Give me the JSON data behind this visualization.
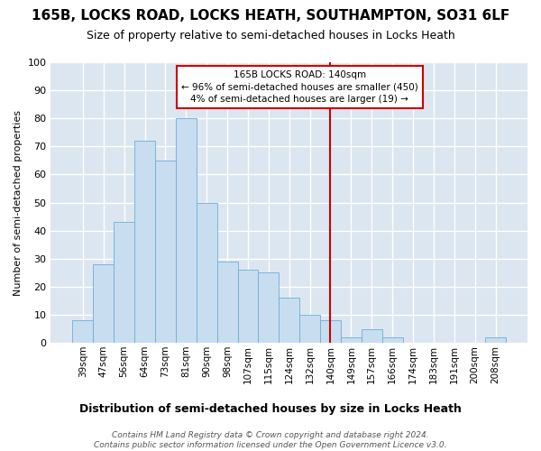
{
  "title1": "165B, LOCKS ROAD, LOCKS HEATH, SOUTHAMPTON, SO31 6LF",
  "title2": "Size of property relative to semi-detached houses in Locks Heath",
  "xlabel": "Distribution of semi-detached houses by size in Locks Heath",
  "ylabel": "Number of semi-detached properties",
  "footer1": "Contains HM Land Registry data © Crown copyright and database right 2024.",
  "footer2": "Contains public sector information licensed under the Open Government Licence v3.0.",
  "categories": [
    "39sqm",
    "47sqm",
    "56sqm",
    "64sqm",
    "73sqm",
    "81sqm",
    "90sqm",
    "98sqm",
    "107sqm",
    "115sqm",
    "124sqm",
    "132sqm",
    "140sqm",
    "149sqm",
    "157sqm",
    "166sqm",
    "174sqm",
    "183sqm",
    "191sqm",
    "200sqm",
    "208sqm"
  ],
  "counts": [
    8,
    28,
    43,
    72,
    65,
    80,
    50,
    29,
    26,
    25,
    16,
    10,
    8,
    2,
    5,
    2,
    0,
    0,
    0,
    0,
    2
  ],
  "bar_color": "#c9ddf0",
  "bar_edge_color": "#6aaed6",
  "fig_bg_color": "#ffffff",
  "ax_bg_color": "#dce6f1",
  "grid_color": "#ffffff",
  "vline_index": 12,
  "vline_color": "#cc0000",
  "annot_line1": "165B LOCKS ROAD: 140sqm",
  "annot_line2": "← 96% of semi-detached houses are smaller (450)",
  "annot_line3": "4% of semi-detached houses are larger (19) →",
  "annot_box_fc": "#ffffff",
  "annot_box_ec": "#cc0000",
  "ylim": [
    0,
    100
  ],
  "yticks": [
    0,
    10,
    20,
    30,
    40,
    50,
    60,
    70,
    80,
    90,
    100
  ],
  "title1_fs": 11,
  "title2_fs": 9,
  "ylabel_fs": 8,
  "xlabel_fs": 9,
  "tick_fs": 8,
  "xtick_fs": 7.5,
  "annot_fs": 7.5,
  "footer_fs": 6.5
}
